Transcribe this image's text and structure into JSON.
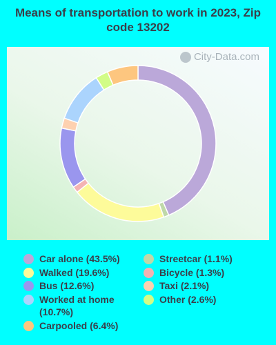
{
  "title": "Means of transportation to work in 2023, Zip code 13202",
  "watermark": "City-Data.com",
  "chart_data": {
    "type": "pie",
    "style": "donut",
    "series": [
      {
        "name": "Car alone (43.5%)",
        "value": 43.5,
        "color": "#bba8d9"
      },
      {
        "name": "Streetcar (1.1%)",
        "value": 1.1,
        "color": "#bfd8a8"
      },
      {
        "name": "Walked (19.6%)",
        "value": 19.6,
        "color": "#fdfb9a"
      },
      {
        "name": "Bicycle (1.3%)",
        "value": 1.3,
        "color": "#f4b3b3"
      },
      {
        "name": "Bus (12.6%)",
        "value": 12.6,
        "color": "#9a96ee"
      },
      {
        "name": "Taxi (2.1%)",
        "value": 2.1,
        "color": "#fed1b0"
      },
      {
        "name": "Worked at home (10.7%)",
        "value": 10.7,
        "color": "#abd4fd"
      },
      {
        "name": "Other (2.6%)",
        "value": 2.6,
        "color": "#d2fc87"
      },
      {
        "name": "Carpooled (6.4%)",
        "value": 6.4,
        "color": "#fdc67f"
      }
    ]
  },
  "legend": {
    "left": [
      {
        "label": "Car alone (43.5%)",
        "color": "#bba8d9"
      },
      {
        "label": "Walked (19.6%)",
        "color": "#fdfb9a"
      },
      {
        "label": "Bus (12.6%)",
        "color": "#9a96ee"
      },
      {
        "label": "Worked at home (10.7%)",
        "color": "#abd4fd"
      },
      {
        "label": "Carpooled (6.4%)",
        "color": "#fdc67f"
      }
    ],
    "right": [
      {
        "label": "Streetcar (1.1%)",
        "color": "#bfd8a8"
      },
      {
        "label": "Bicycle (1.3%)",
        "color": "#f4b3b3"
      },
      {
        "label": "Taxi (2.1%)",
        "color": "#fed1b0"
      },
      {
        "label": "Other (2.6%)",
        "color": "#d2fc87"
      }
    ]
  }
}
